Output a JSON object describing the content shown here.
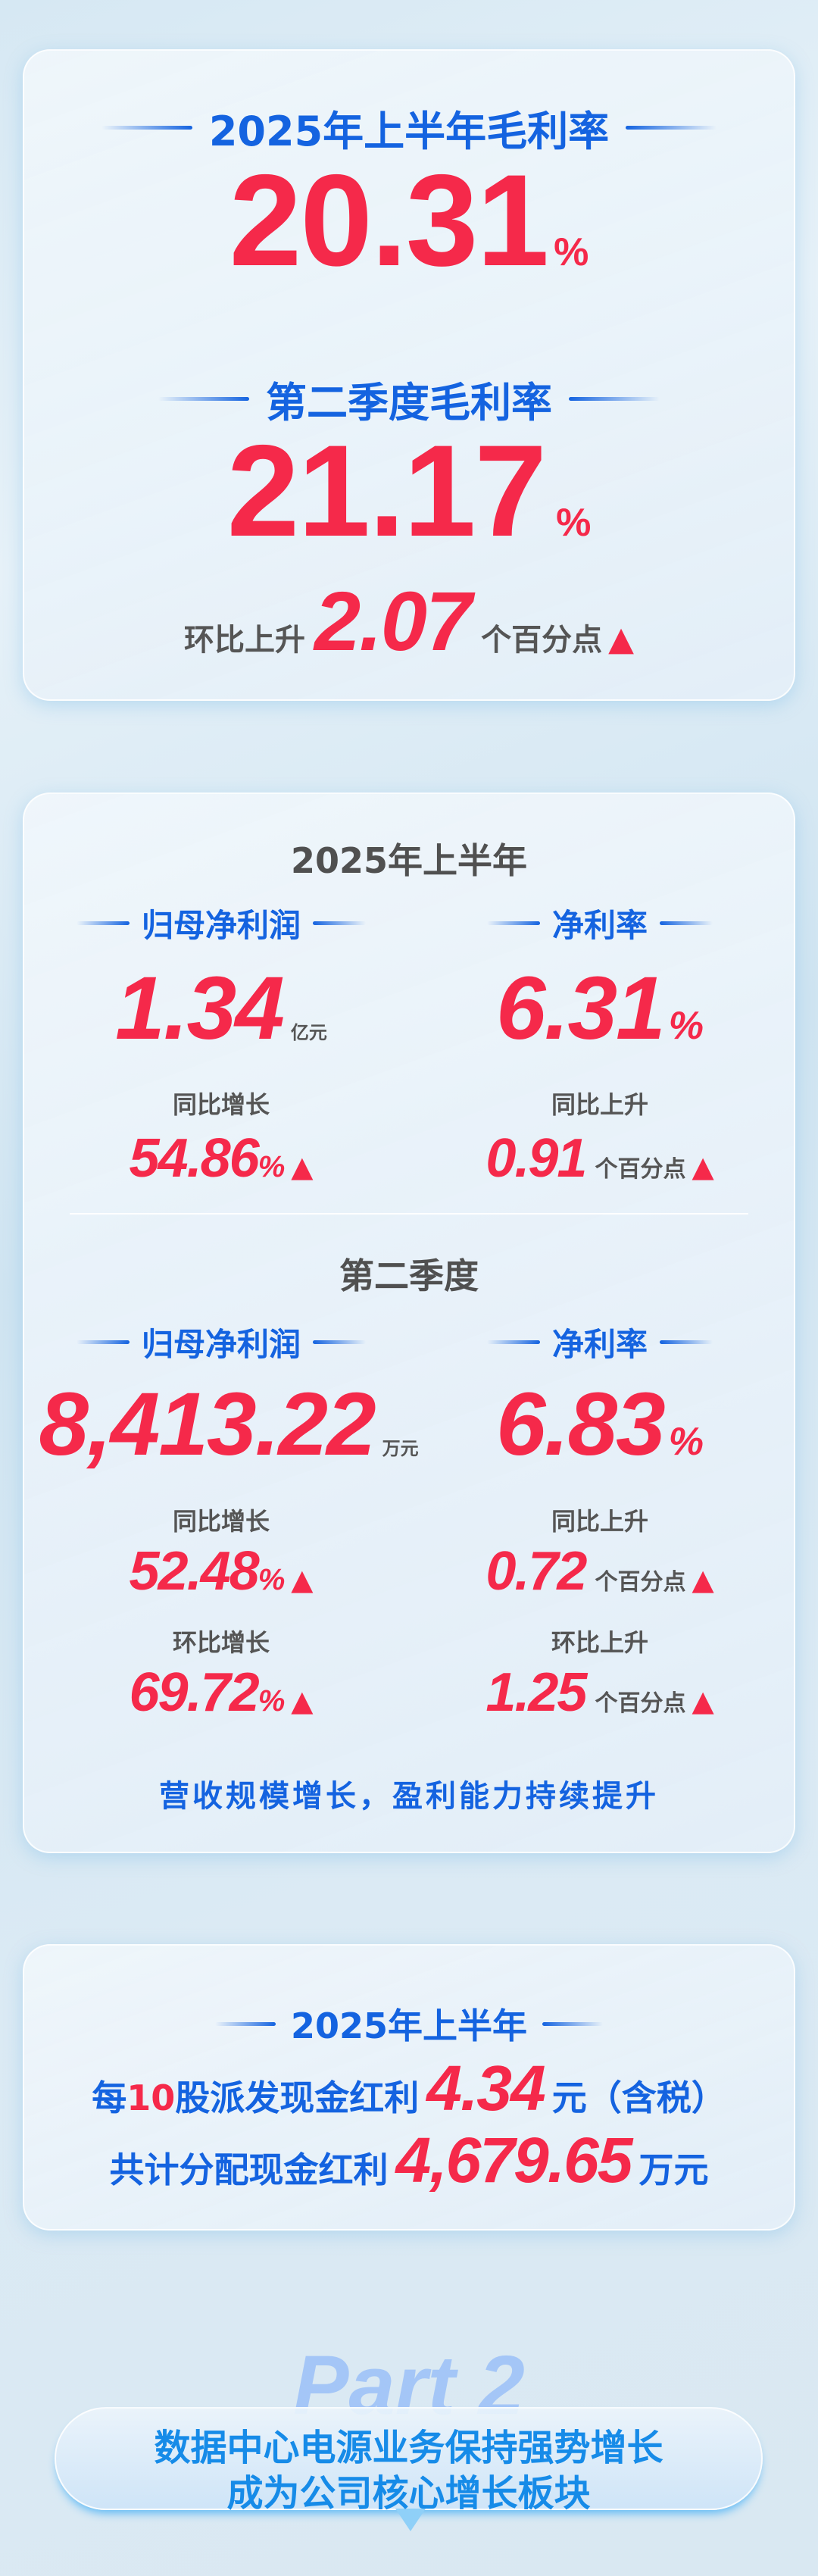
{
  "colors": {
    "accent_blue": "#1463e0",
    "accent_red": "#f5294a",
    "text_gray": "#555555"
  },
  "gross_margin": {
    "h1_title": "2025年上半年毛利率",
    "h1_value": "20.31",
    "h1_unit": "%",
    "q2_title": "第二季度毛利率",
    "q2_value": "21.17",
    "q2_unit": "%",
    "qoq_label": "环比上升",
    "qoq_value": "2.07",
    "qoq_unit": "个百分点",
    "trend_icon": "▲"
  },
  "profit": {
    "h1": {
      "title": "2025年上半年",
      "net_profit": {
        "label": "归母净利润",
        "value": "1.34",
        "unit": "亿元",
        "yoy_label": "同比增长",
        "yoy_value": "54.86",
        "yoy_unit": "%"
      },
      "net_margin": {
        "label": "净利率",
        "value": "6.31",
        "unit": "%",
        "yoy_label": "同比上升",
        "yoy_value": "0.91",
        "yoy_unit": "个百分点"
      }
    },
    "q2": {
      "title": "第二季度",
      "net_profit": {
        "label": "归母净利润",
        "value": "8,413.22",
        "unit": "万元",
        "yoy_label": "同比增长",
        "yoy_value": "52.48",
        "yoy_unit": "%",
        "qoq_label": "环比增长",
        "qoq_value": "69.72",
        "qoq_unit": "%"
      },
      "net_margin": {
        "label": "净利率",
        "value": "6.83",
        "unit": "%",
        "yoy_label": "同比上升",
        "yoy_value": "0.72",
        "yoy_unit": "个百分点",
        "qoq_label": "环比上升",
        "qoq_value": "1.25",
        "qoq_unit": "个百分点"
      }
    },
    "slogan": "营收规模增长，盈利能力持续提升"
  },
  "dividend": {
    "title": "2025年上半年",
    "line1_prefix": "每",
    "line1_shares": "10",
    "line1_mid": "股派发现金红利",
    "line1_value": "4.34",
    "line1_suffix": "元（含税）",
    "line2_prefix": "共计分配现金红利",
    "line2_value": "4,679.65",
    "line2_suffix": "万元"
  },
  "part2": {
    "label": "Part 2",
    "line1": "数据中心电源业务保持强势增长",
    "line2": "成为公司核心增长板块"
  }
}
